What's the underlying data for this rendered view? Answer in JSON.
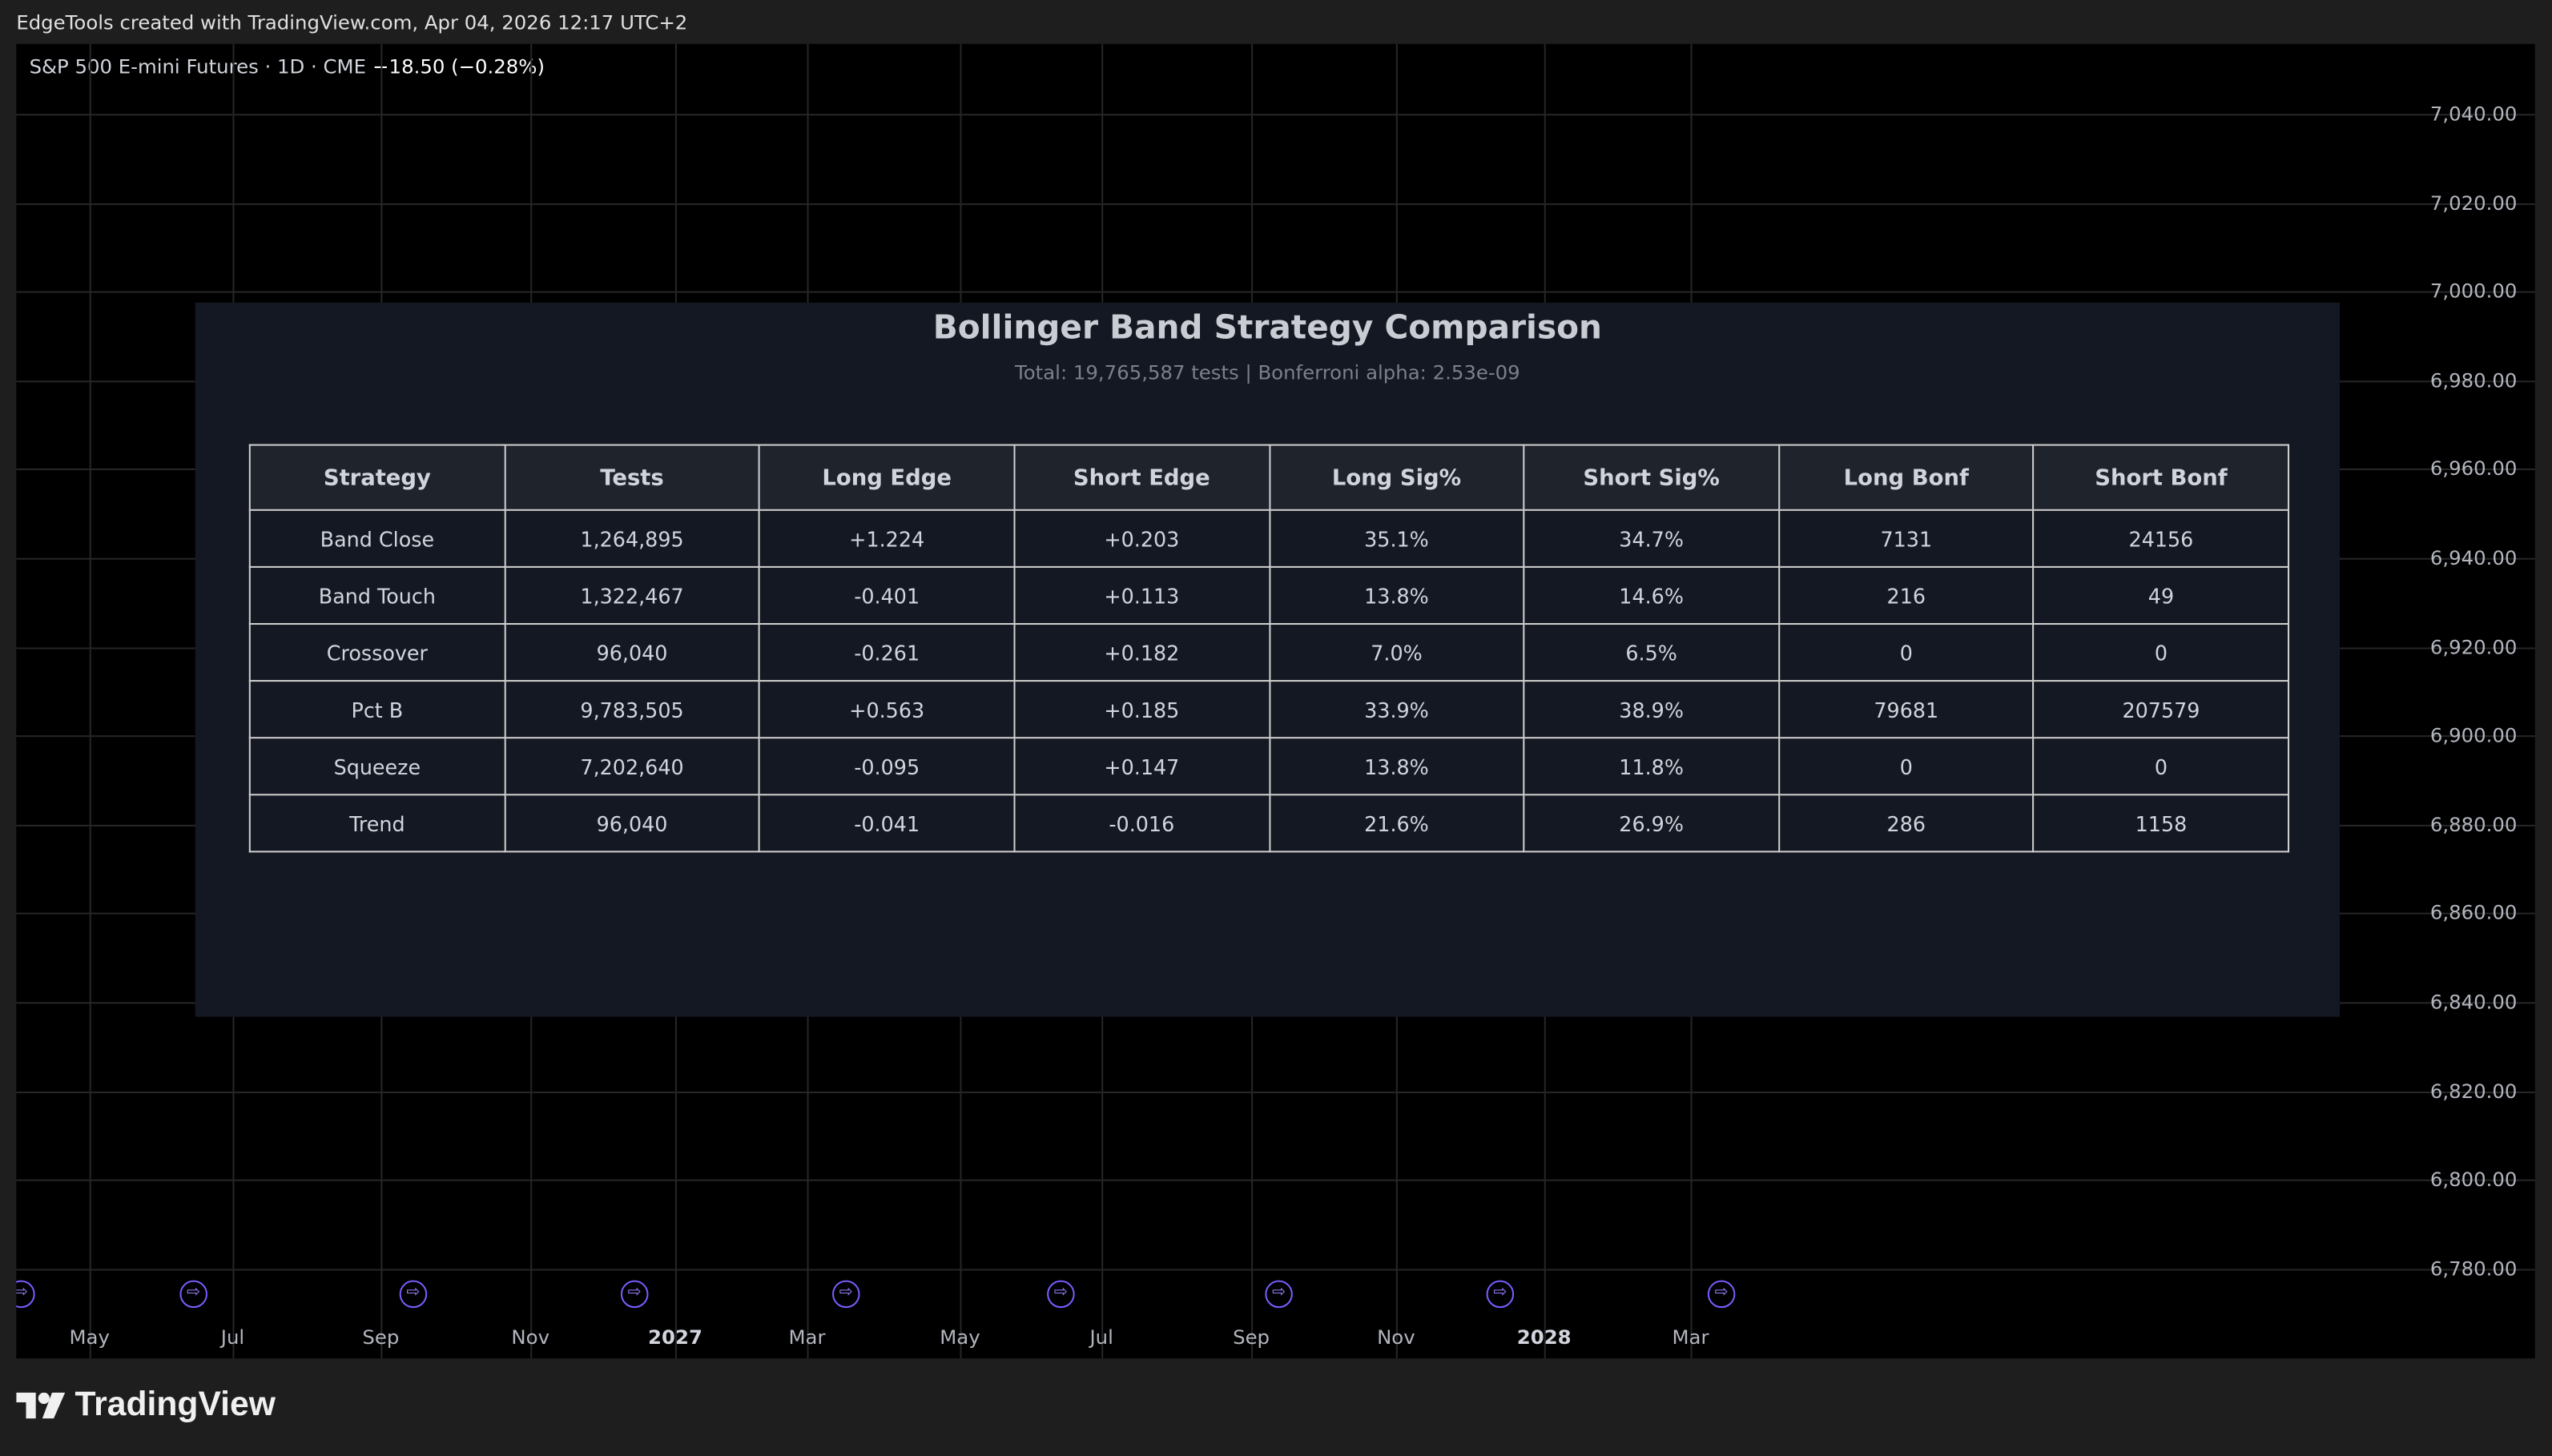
{
  "header": {
    "text": "EdgeTools created with TradingView.com, Apr 04, 2026 12:17 UTC+2"
  },
  "symbol": {
    "name": "S&P 500 E-mini Futures · 1D · CME",
    "change": "−18.50 (−0.28%)"
  },
  "price_axis": {
    "ticks": [
      "7,040.00",
      "7,020.00",
      "7,000.00",
      "6,980.00",
      "6,960.00",
      "6,940.00",
      "6,920.00",
      "6,900.00",
      "6,880.00",
      "6,860.00",
      "6,840.00",
      "6,820.00",
      "6,800.00",
      "6,780.00"
    ]
  },
  "time_axis": {
    "ticks": [
      "May",
      "Jul",
      "Sep",
      "Nov",
      "2027",
      "Mar",
      "May",
      "Jul",
      "Sep",
      "Nov",
      "2028",
      "Mar"
    ]
  },
  "table": {
    "title": "Bollinger Band Strategy Comparison",
    "subtitle": "Total: 19,765,587 tests | Bonferroni alpha: 2.53e-09",
    "columns": [
      "Strategy",
      "Tests",
      "Long Edge",
      "Short Edge",
      "Long Sig%",
      "Short Sig%",
      "Long Bonf",
      "Short Bonf"
    ],
    "rows": [
      [
        "Band Close",
        "1,264,895",
        "+1.224",
        "+0.203",
        "35.1%",
        "34.7%",
        "7131",
        "24156"
      ],
      [
        "Band Touch",
        "1,322,467",
        "-0.401",
        "+0.113",
        "13.8%",
        "14.6%",
        "216",
        "49"
      ],
      [
        "Crossover",
        "96,040",
        "-0.261",
        "+0.182",
        "7.0%",
        "6.5%",
        "0",
        "0"
      ],
      [
        "Pct B",
        "9,783,505",
        "+0.563",
        "+0.185",
        "33.9%",
        "38.9%",
        "79681",
        "207579"
      ],
      [
        "Squeeze",
        "7,202,640",
        "-0.095",
        "+0.147",
        "13.8%",
        "11.8%",
        "0",
        "0"
      ],
      [
        "Trend",
        "96,040",
        "-0.041",
        "-0.016",
        "21.6%",
        "26.9%",
        "286",
        "1158"
      ]
    ]
  },
  "footer": {
    "logo": "TradingView"
  }
}
